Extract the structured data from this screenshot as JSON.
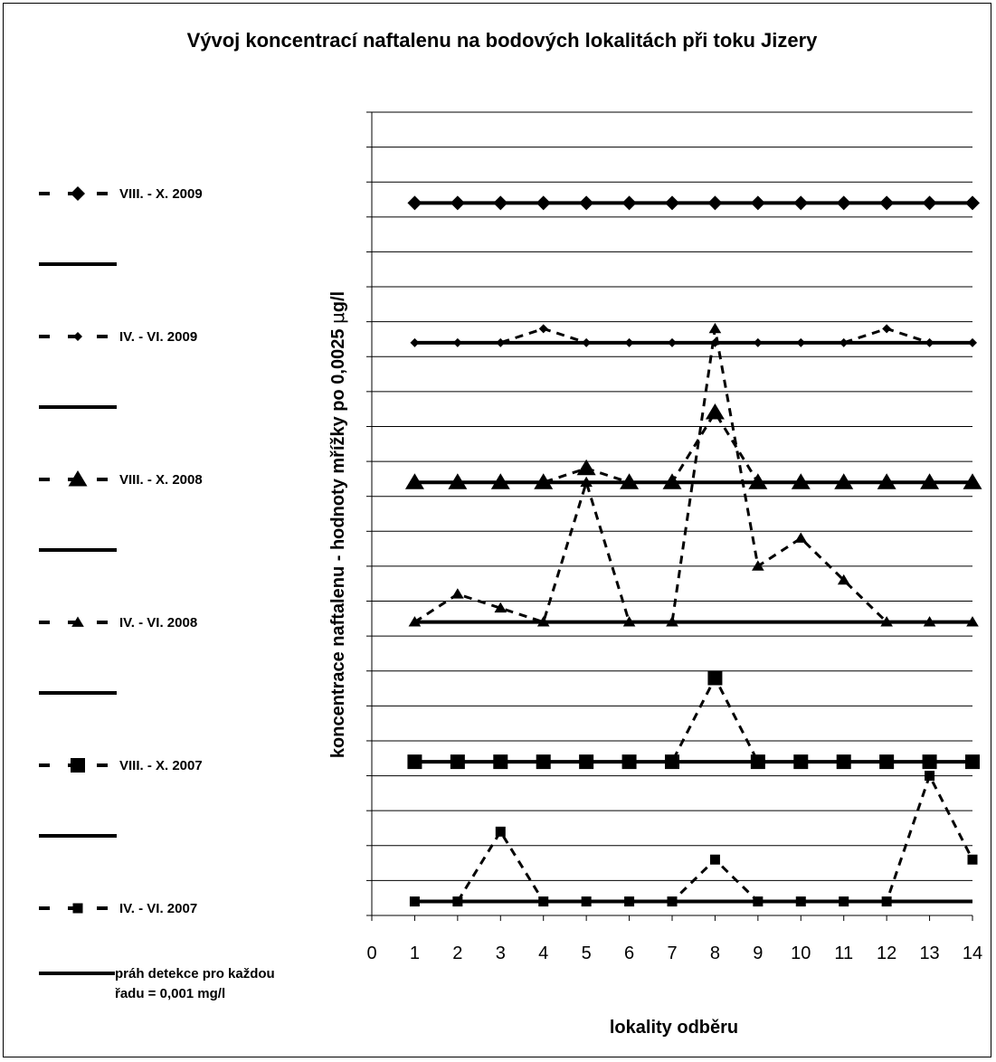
{
  "chart_data": {
    "type": "line",
    "title": "Vývoj koncentrací naftalenu na bodových lokalitách při toku Jizery",
    "xlabel": "lokality odběru",
    "ylabel_parts": [
      "koncentrace naftalenu - hodnoty mřížky  po 0,0025 ",
      "μ",
      "g/l"
    ],
    "x_ticks": [
      0,
      1,
      2,
      3,
      4,
      5,
      6,
      7,
      8,
      9,
      10,
      11,
      12,
      13,
      14
    ],
    "xlim": [
      0,
      14
    ],
    "ylim": [
      0,
      0.0575
    ],
    "grid_step": 0.0025,
    "grid": true,
    "legend_position": "left",
    "x": [
      1,
      2,
      3,
      4,
      5,
      6,
      7,
      8,
      9,
      10,
      11,
      12,
      13,
      14
    ],
    "series": [
      {
        "name": "VIII. - X.  2009",
        "marker": "diamond",
        "size": "large",
        "baseline": 0.051,
        "values": [
          0.051,
          0.051,
          0.051,
          0.051,
          0.051,
          0.051,
          0.051,
          0.051,
          0.051,
          0.051,
          0.051,
          0.051,
          0.051,
          0.051
        ]
      },
      {
        "name": "IV. - VI.  2009",
        "marker": "diamond",
        "size": "small",
        "baseline": 0.041,
        "values": [
          0.041,
          0.041,
          0.041,
          0.042,
          0.041,
          0.041,
          0.041,
          0.041,
          0.041,
          0.041,
          0.041,
          0.042,
          0.041,
          0.041
        ]
      },
      {
        "name": "VIII. - X.  2008",
        "marker": "triangle",
        "size": "large",
        "baseline": 0.031,
        "values": [
          0.031,
          0.031,
          0.031,
          0.031,
          0.032,
          0.031,
          0.031,
          0.036,
          0.031,
          0.031,
          0.031,
          0.031,
          0.031,
          0.031
        ]
      },
      {
        "name": "IV. - VI.  2008",
        "marker": "triangle",
        "size": "small",
        "baseline": 0.021,
        "values": [
          0.021,
          0.023,
          0.022,
          0.021,
          0.031,
          0.021,
          0.021,
          0.042,
          0.025,
          0.027,
          0.024,
          0.021,
          0.021,
          0.021
        ]
      },
      {
        "name": "VIII. - X.  2007",
        "marker": "square",
        "size": "large",
        "baseline": 0.011,
        "values": [
          0.011,
          0.011,
          0.011,
          0.011,
          0.011,
          0.011,
          0.011,
          0.017,
          0.011,
          0.011,
          0.011,
          0.011,
          0.011,
          0.011
        ]
      },
      {
        "name": "IV. - VI.  2007",
        "marker": "square",
        "size": "small",
        "baseline": 0.001,
        "values": [
          0.001,
          0.001,
          0.006,
          0.001,
          0.001,
          0.001,
          0.001,
          0.004,
          0.001,
          0.001,
          0.001,
          0.001,
          0.01,
          0.004
        ]
      }
    ],
    "threshold_label": "práh detekce pro každou řadu = 0,001 mg/l",
    "threshold_label_lines": [
      "práh detekce pro každou",
      "řadu = 0,001 mg/l"
    ],
    "colors": {
      "line": "#000000",
      "grid": "#000000",
      "background": "#ffffff"
    }
  }
}
